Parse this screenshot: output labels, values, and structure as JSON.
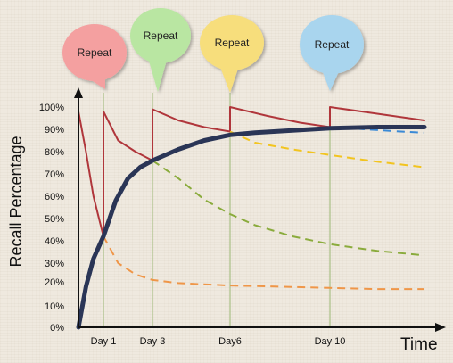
{
  "chart_data": {
    "type": "line",
    "xlabel": "Time",
    "ylabel": "Recall Percentage",
    "ylim": [
      0,
      100
    ],
    "y_ticks": [
      "0%",
      "10%",
      "20%",
      "30%",
      "40%",
      "50%",
      "60%",
      "70%",
      "80%",
      "90%",
      "100%"
    ],
    "x_ticks": [
      {
        "label": "Day 1",
        "day": 1
      },
      {
        "label": "Day 3",
        "day": 3
      },
      {
        "label": "Day6",
        "day": 6
      },
      {
        "label": "Day 10",
        "day": 10
      }
    ],
    "x_range": [
      0,
      14.5
    ],
    "annotations": [
      {
        "text": "Repeat",
        "day": 1,
        "color": "#f4a0a0"
      },
      {
        "text": "Repeat",
        "day": 3,
        "color": "#b9e6a2"
      },
      {
        "text": "Repeat",
        "day": 6,
        "color": "#f7de7c"
      },
      {
        "text": "Repeat",
        "day": 10,
        "color": "#a9d5ee"
      }
    ],
    "series": [
      {
        "color": "#b0363b",
        "style": "solid",
        "width": 2,
        "points": [
          [
            0,
            98
          ],
          [
            0.3,
            80
          ],
          [
            0.6,
            60
          ],
          [
            1,
            42
          ],
          [
            1,
            98
          ],
          [
            1.6,
            85
          ],
          [
            2.3,
            80
          ],
          [
            3,
            76
          ],
          [
            3,
            99
          ],
          [
            4,
            94
          ],
          [
            5,
            91
          ],
          [
            6,
            89
          ],
          [
            6,
            100
          ],
          [
            7.5,
            96
          ],
          [
            8.8,
            93
          ],
          [
            10,
            91
          ],
          [
            10,
            100
          ],
          [
            12,
            97
          ],
          [
            14,
            94
          ]
        ]
      },
      {
        "color": "#ef9648",
        "style": "dashed",
        "width": 2,
        "points": [
          [
            1,
            42
          ],
          [
            1.6,
            30
          ],
          [
            2.3,
            24
          ],
          [
            3,
            21
          ],
          [
            4,
            19.5
          ],
          [
            6,
            18.5
          ],
          [
            8,
            18
          ],
          [
            10,
            17.5
          ],
          [
            12,
            17
          ],
          [
            14,
            17
          ]
        ]
      },
      {
        "color": "#8aab3c",
        "style": "dashed",
        "width": 2,
        "points": [
          [
            3,
            76
          ],
          [
            4,
            68
          ],
          [
            5,
            58.5
          ],
          [
            6,
            52
          ],
          [
            7,
            47
          ],
          [
            8.5,
            42
          ],
          [
            10,
            38.5
          ],
          [
            12,
            35.5
          ],
          [
            14,
            33.5
          ]
        ]
      },
      {
        "color": "#f2c41f",
        "style": "dashed",
        "width": 2,
        "points": [
          [
            6,
            89
          ],
          [
            7,
            84
          ],
          [
            8.5,
            81
          ],
          [
            10,
            78.5
          ],
          [
            12,
            75.5
          ],
          [
            14,
            73
          ]
        ]
      },
      {
        "color": "#3b8ad6",
        "style": "dashed",
        "width": 2,
        "points": [
          [
            10,
            91
          ],
          [
            11.5,
            90
          ],
          [
            13,
            89
          ],
          [
            14,
            88.5
          ]
        ]
      },
      {
        "color": "#2a3556",
        "style": "solid",
        "width": 5,
        "points": [
          [
            0,
            0
          ],
          [
            0.3,
            18
          ],
          [
            0.6,
            32
          ],
          [
            1,
            42
          ],
          [
            1.5,
            58
          ],
          [
            2,
            68
          ],
          [
            2.5,
            73
          ],
          [
            3,
            76
          ],
          [
            4,
            81
          ],
          [
            5,
            85
          ],
          [
            6,
            87.5
          ],
          [
            7,
            88.5
          ],
          [
            8.5,
            89.5
          ],
          [
            10,
            90.5
          ],
          [
            12,
            91
          ],
          [
            14,
            91
          ]
        ]
      }
    ]
  }
}
